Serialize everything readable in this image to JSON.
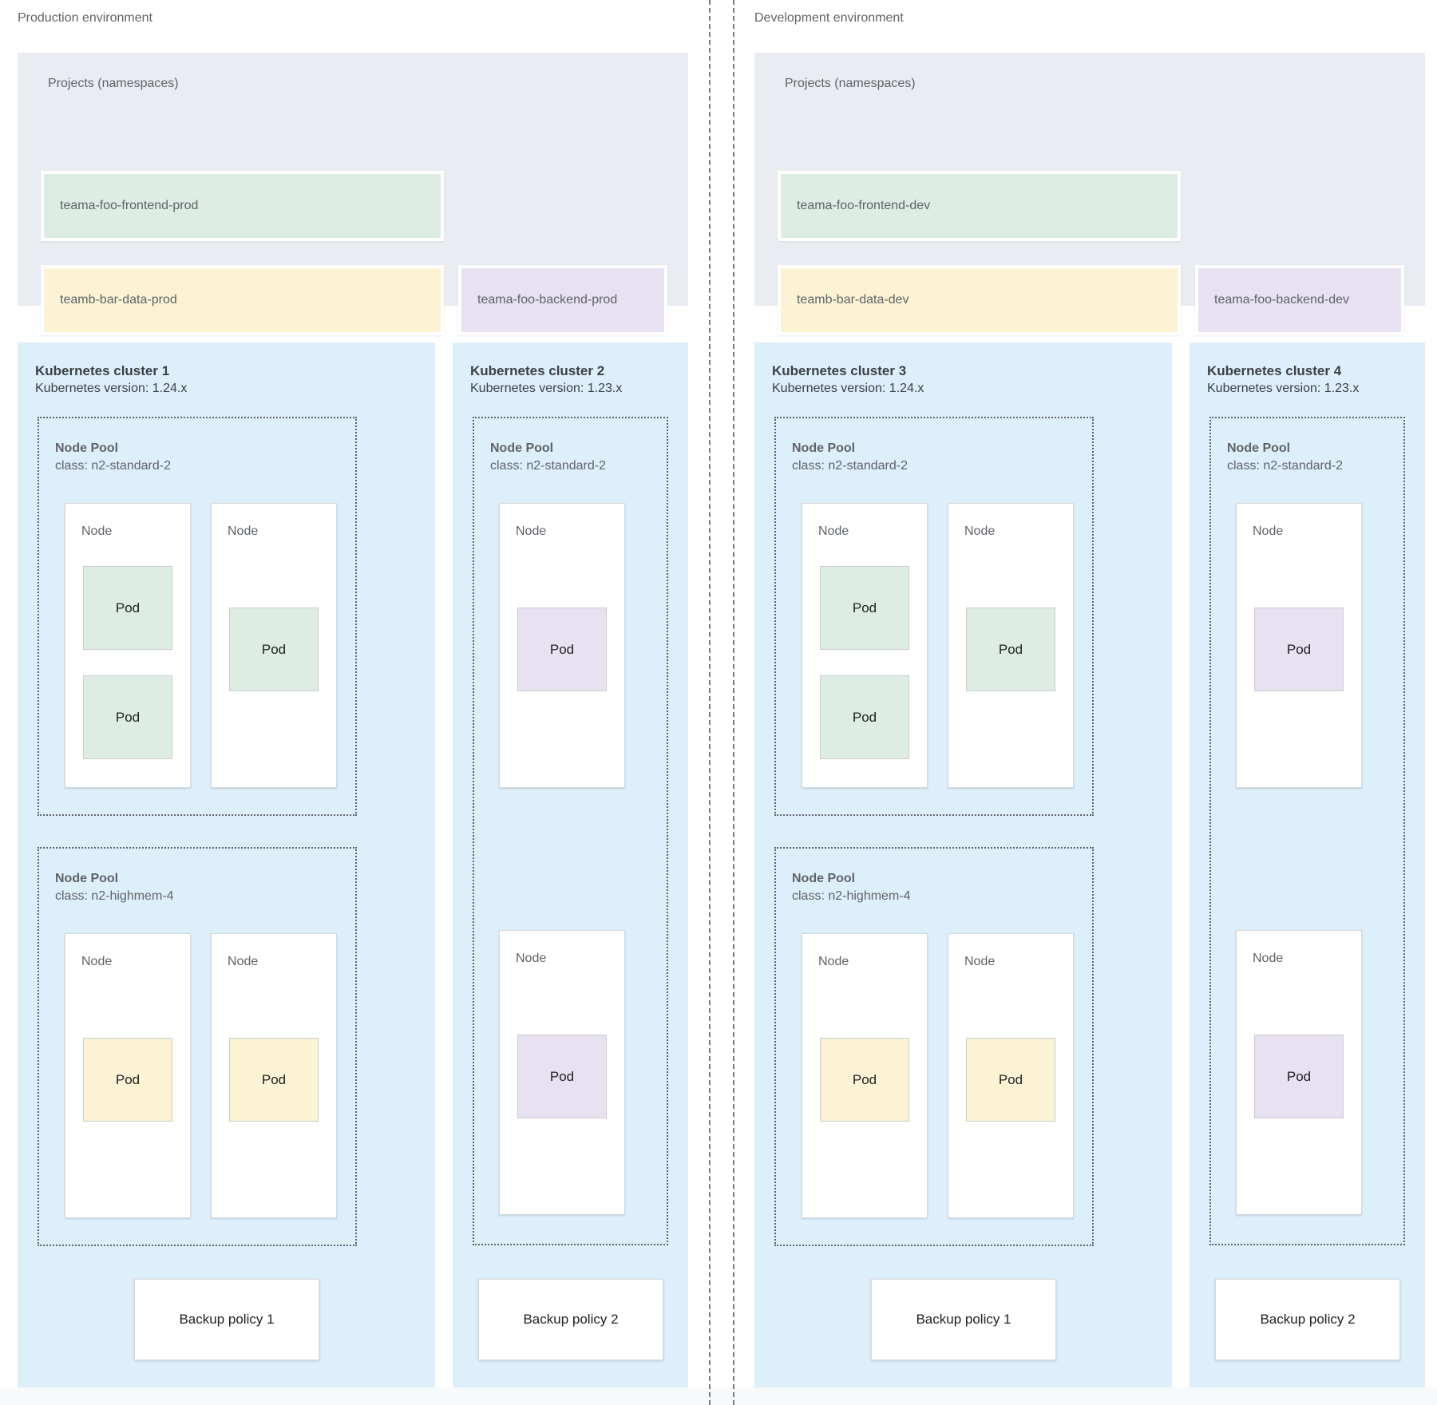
{
  "colors": {
    "projects_bg": "#e9edf1",
    "cluster_bg": "#ddeffb",
    "green": "#ddede3",
    "yellow": "#fbf3d4",
    "purple": "#e8e1f2"
  },
  "environments": [
    {
      "label": "Production environment",
      "projects": {
        "title": "Projects (namespaces)",
        "namespaces": [
          {
            "name": "teama-foo-frontend-prod",
            "color": "#ddede3"
          },
          {
            "name": "teamb-bar-data-prod",
            "color": "#fbf3d4"
          },
          {
            "name": "teama-foo-backend-prod",
            "color": "#e8e1f2"
          }
        ]
      },
      "clusters": [
        {
          "title": "Kubernetes cluster 1",
          "version": "Kubernetes version: 1.24.x",
          "backup_policy": "Backup policy 1",
          "node_pools": [
            {
              "name": "Node Pool",
              "node_class": "class: n2-standard-2",
              "nodes": [
                {
                  "label": "Node",
                  "pods": [
                    {
                      "label": "Pod",
                      "color": "#ddede3"
                    },
                    {
                      "label": "Pod",
                      "color": "#ddede3"
                    }
                  ]
                },
                {
                  "label": "Node",
                  "pods": [
                    {
                      "label": "Pod",
                      "color": "#ddede3"
                    }
                  ]
                }
              ]
            },
            {
              "name": "Node Pool",
              "node_class": "class: n2-highmem-4",
              "nodes": [
                {
                  "label": "Node",
                  "pods": [
                    {
                      "label": "Pod",
                      "color": "#fbf3d4"
                    }
                  ]
                },
                {
                  "label": "Node",
                  "pods": [
                    {
                      "label": "Pod",
                      "color": "#fbf3d4"
                    }
                  ]
                }
              ]
            }
          ]
        },
        {
          "title": "Kubernetes cluster 2",
          "version": "Kubernetes version: 1.23.x",
          "backup_policy": "Backup policy 2",
          "node_pools": [
            {
              "name": "Node Pool",
              "node_class": "class: n2-standard-2",
              "nodes": [
                {
                  "label": "Node",
                  "pods": [
                    {
                      "label": "Pod",
                      "color": "#e8e1f2"
                    }
                  ]
                },
                {
                  "label": "Node",
                  "pods": [
                    {
                      "label": "Pod",
                      "color": "#e8e1f2"
                    }
                  ]
                }
              ]
            }
          ]
        }
      ]
    },
    {
      "label": "Development environment",
      "projects": {
        "title": "Projects (namespaces)",
        "namespaces": [
          {
            "name": "teama-foo-frontend-dev",
            "color": "#ddede3"
          },
          {
            "name": "teamb-bar-data-dev",
            "color": "#fbf3d4"
          },
          {
            "name": "teama-foo-backend-dev",
            "color": "#e8e1f2"
          }
        ]
      },
      "clusters": [
        {
          "title": "Kubernetes cluster 3",
          "version": "Kubernetes version: 1.24.x",
          "backup_policy": "Backup policy 1",
          "node_pools": [
            {
              "name": "Node Pool",
              "node_class": "class: n2-standard-2",
              "nodes": [
                {
                  "label": "Node",
                  "pods": [
                    {
                      "label": "Pod",
                      "color": "#ddede3"
                    },
                    {
                      "label": "Pod",
                      "color": "#ddede3"
                    }
                  ]
                },
                {
                  "label": "Node",
                  "pods": [
                    {
                      "label": "Pod",
                      "color": "#ddede3"
                    }
                  ]
                }
              ]
            },
            {
              "name": "Node Pool",
              "node_class": "class: n2-highmem-4",
              "nodes": [
                {
                  "label": "Node",
                  "pods": [
                    {
                      "label": "Pod",
                      "color": "#fbf3d4"
                    }
                  ]
                },
                {
                  "label": "Node",
                  "pods": [
                    {
                      "label": "Pod",
                      "color": "#fbf3d4"
                    }
                  ]
                }
              ]
            }
          ]
        },
        {
          "title": "Kubernetes cluster 4",
          "version": "Kubernetes version: 1.23.x",
          "backup_policy": "Backup policy 2",
          "node_pools": [
            {
              "name": "Node Pool",
              "node_class": "class: n2-standard-2",
              "nodes": [
                {
                  "label": "Node",
                  "pods": [
                    {
                      "label": "Pod",
                      "color": "#e8e1f2"
                    }
                  ]
                },
                {
                  "label": "Node",
                  "pods": [
                    {
                      "label": "Pod",
                      "color": "#e8e1f2"
                    }
                  ]
                }
              ]
            }
          ]
        }
      ]
    }
  ]
}
